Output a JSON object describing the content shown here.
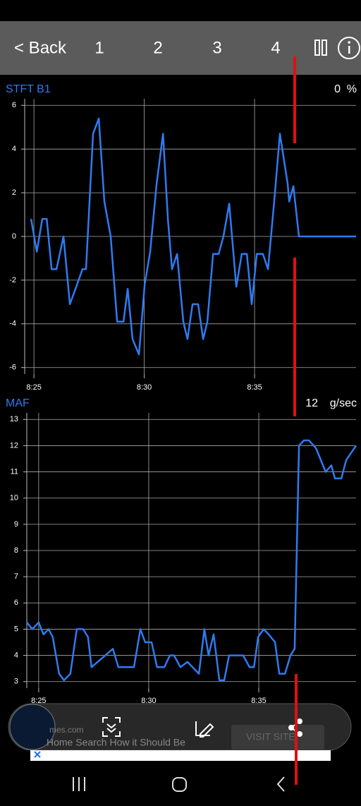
{
  "toolbar": {
    "back": "< Back",
    "tabs": [
      "1",
      "2",
      "3",
      "4"
    ]
  },
  "chart_data": [
    {
      "type": "line",
      "title": "STFT B1",
      "current_value": 0,
      "unit": "%",
      "color": "#2f7bf0",
      "grid": true,
      "x": [
        504.87,
        505.13,
        505.38,
        505.58,
        505.8,
        506.02,
        506.34,
        506.63,
        506.92,
        507.2,
        507.36,
        507.68,
        507.94,
        508.19,
        508.48,
        508.77,
        509.06,
        509.25,
        509.47,
        509.76,
        510.02,
        510.27,
        510.56,
        510.85,
        511.07,
        511.26,
        511.49,
        511.77,
        511.96,
        512.19,
        512.44,
        512.67,
        512.86,
        513.12,
        513.37,
        513.59,
        513.85,
        514.17,
        514.42,
        514.65,
        514.87,
        515.1,
        515.38,
        515.61,
        515.89,
        516.15,
        516.5,
        516.57,
        516.76,
        517.01,
        519.6
      ],
      "values": [
        0.8,
        -0.7,
        0.8,
        0.8,
        -1.5,
        -1.5,
        0,
        -3.1,
        -2.3,
        -1.5,
        -1.5,
        4.7,
        5.4,
        1.6,
        0,
        -3.9,
        -3.9,
        -2.4,
        -4.7,
        -5.4,
        -2.2,
        -0.7,
        2.4,
        4.7,
        0.8,
        -1.5,
        -0.8,
        -3.9,
        -4.7,
        -3.1,
        -3.1,
        -4.7,
        -3.9,
        -0.8,
        -0.8,
        0,
        1.5,
        -2.3,
        -0.8,
        -0.8,
        -3.1,
        -0.8,
        -0.8,
        -1.5,
        1.6,
        4.7,
        2.4,
        1.6,
        2.3,
        0,
        0
      ],
      "xlim": [
        504.58,
        519.6
      ],
      "xticks": [
        {
          "value": 505,
          "label": "8:25"
        },
        {
          "value": 510,
          "label": "8:30"
        },
        {
          "value": 515,
          "label": "8:35"
        }
      ],
      "ylim": [
        -6.3,
        6.3
      ],
      "yticks": [
        -6,
        -4,
        -2,
        0,
        2,
        4,
        6
      ]
    },
    {
      "type": "line",
      "title": "MAF",
      "current_value": 12,
      "unit": "g/sec",
      "color": "#2f7bf0",
      "grid": true,
      "x": [
        504.46,
        504.71,
        505.0,
        505.22,
        505.45,
        505.64,
        505.93,
        506.15,
        506.44,
        506.73,
        507.02,
        507.24,
        507.4,
        508.37,
        508.62,
        509.33,
        509.62,
        509.84,
        510.13,
        510.38,
        510.71,
        510.96,
        511.15,
        511.44,
        511.76,
        512.28,
        512.53,
        512.72,
        512.95,
        513.21,
        513.43,
        513.65,
        514.29,
        514.58,
        514.78,
        514.97,
        515.22,
        515.45,
        515.74,
        515.93,
        516.19,
        516.44,
        516.63,
        516.83,
        517.05,
        517.28,
        517.6,
        518.04,
        518.3,
        518.46,
        518.75,
        518.97,
        519.42
      ],
      "values": [
        5.26,
        5.0,
        5.26,
        4.8,
        5.0,
        4.7,
        3.3,
        3.05,
        3.3,
        5.0,
        5.0,
        4.7,
        3.55,
        4.25,
        3.55,
        3.55,
        5.0,
        4.5,
        4.5,
        3.55,
        3.55,
        4.0,
        4.0,
        3.55,
        3.75,
        3.3,
        5.0,
        4.0,
        4.8,
        3.05,
        3.05,
        4.0,
        4.0,
        3.55,
        3.55,
        4.7,
        5.0,
        4.8,
        4.5,
        3.3,
        3.3,
        4.0,
        4.25,
        12.0,
        12.2,
        12.2,
        11.9,
        11.0,
        11.25,
        10.75,
        10.75,
        11.45,
        12.0
      ],
      "xlim": [
        504.46,
        519.42
      ],
      "xticks": [
        {
          "value": 505,
          "label": "8:25"
        },
        {
          "value": 510,
          "label": "8:30"
        },
        {
          "value": 515,
          "label": "8:35"
        }
      ],
      "ylim": [
        2.75,
        13.25
      ],
      "yticks": [
        3,
        4,
        5,
        6,
        7,
        8,
        9,
        10,
        11,
        12,
        13
      ]
    }
  ],
  "ad": {
    "site": "mes.com",
    "headline": "Home Search How it Should Be",
    "button": "VISIT SITE"
  }
}
